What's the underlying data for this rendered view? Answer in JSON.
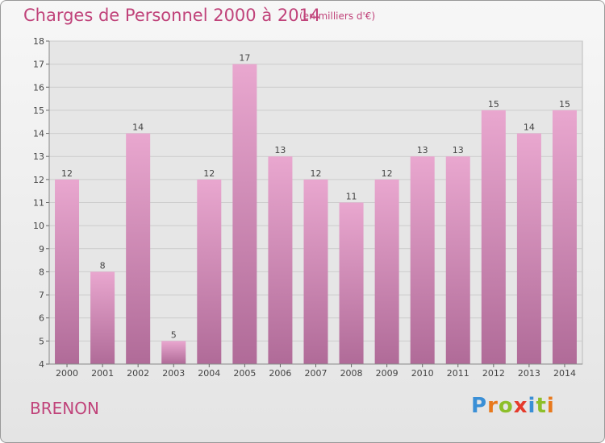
{
  "header": {
    "title": "Charges de Personnel 2000 à 2014",
    "subtitle": "(en milliers d'€)"
  },
  "commune": "BRENON",
  "logo": {
    "text": "Proxiti",
    "letter_colors": [
      "#3a8fd6",
      "#e8791c",
      "#8dbf2a",
      "#e53b2c",
      "#3a8fd6",
      "#8dbf2a",
      "#e8791c"
    ]
  },
  "colors": {
    "bar_top": "#e9a7cf",
    "bar_bottom": "#b06b98",
    "text_accent": "#c0437a"
  },
  "chart_data": {
    "type": "bar",
    "title": "Charges de Personnel 2000 à 2014",
    "subtitle": "(en milliers d'€)",
    "categories": [
      "2000",
      "2001",
      "2002",
      "2003",
      "2004",
      "2005",
      "2006",
      "2007",
      "2008",
      "2009",
      "2010",
      "2011",
      "2012",
      "2013",
      "2014"
    ],
    "values": [
      12,
      8,
      14,
      5,
      12,
      17,
      13,
      12,
      11,
      12,
      13,
      13,
      15,
      14,
      15
    ],
    "ylim": [
      4,
      18
    ],
    "yticks": [
      4,
      5,
      6,
      7,
      8,
      9,
      10,
      11,
      12,
      13,
      14,
      15,
      16,
      17,
      18
    ],
    "grid": true,
    "data_labels": true
  }
}
